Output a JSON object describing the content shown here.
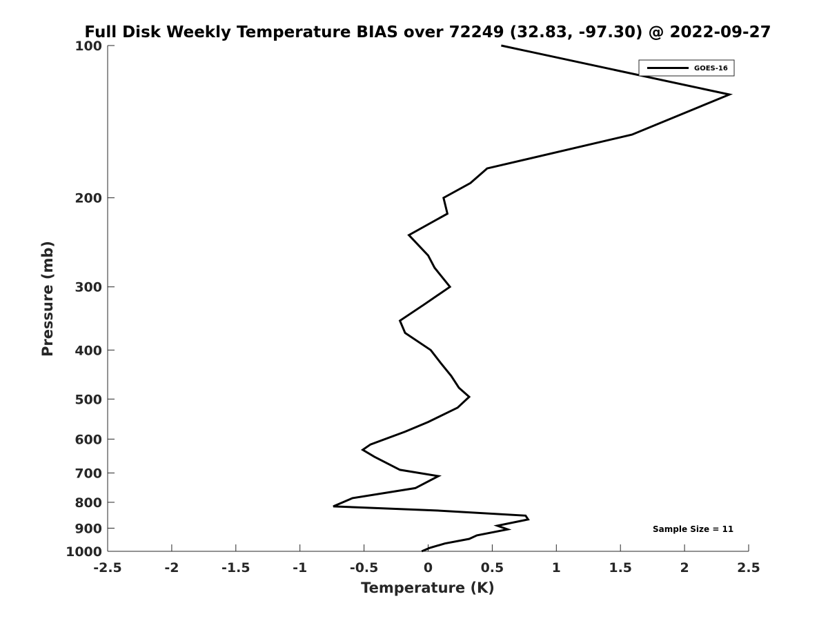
{
  "chart_data": {
    "type": "line",
    "title": "Full Disk Weekly Temperature BIAS over 72249 (32.83, -97.30) @ 2022-09-27",
    "xlabel": "Temperature (K)",
    "ylabel": "Pressure (mb)",
    "xlim": [
      -2.5,
      2.5
    ],
    "ylim": [
      100,
      1000
    ],
    "y_scale": "log",
    "y_reversed": true,
    "x_ticks": [
      -2.5,
      -2,
      -1.5,
      -1,
      -0.5,
      0,
      0.5,
      1,
      1.5,
      2,
      2.5
    ],
    "x_tick_labels": [
      "-2.5",
      "-2",
      "-1.5",
      "-1",
      "-0.5",
      "0",
      "0.5",
      "1",
      "1.5",
      "2",
      "2.5"
    ],
    "y_ticks": [
      100,
      200,
      300,
      400,
      500,
      600,
      700,
      800,
      900,
      1000
    ],
    "y_tick_labels": [
      "100",
      "200",
      "300",
      "400",
      "500",
      "600",
      "700",
      "800",
      "900",
      "1000"
    ],
    "grid": false,
    "legend_position": "top-right",
    "annotation": "Sample Size = 11",
    "series": [
      {
        "name": "GOES-16",
        "color": "#000000",
        "points": [
          {
            "x": 0.57,
            "y": 100
          },
          {
            "x": 2.35,
            "y": 125
          },
          {
            "x": 1.59,
            "y": 150
          },
          {
            "x": 0.46,
            "y": 175
          },
          {
            "x": 0.33,
            "y": 187
          },
          {
            "x": 0.12,
            "y": 200
          },
          {
            "x": 0.15,
            "y": 215
          },
          {
            "x": -0.15,
            "y": 237
          },
          {
            "x": 0.0,
            "y": 260
          },
          {
            "x": 0.05,
            "y": 275
          },
          {
            "x": 0.17,
            "y": 300
          },
          {
            "x": -0.03,
            "y": 325
          },
          {
            "x": -0.22,
            "y": 350
          },
          {
            "x": -0.18,
            "y": 370
          },
          {
            "x": 0.02,
            "y": 400
          },
          {
            "x": 0.1,
            "y": 425
          },
          {
            "x": 0.18,
            "y": 450
          },
          {
            "x": 0.24,
            "y": 475
          },
          {
            "x": 0.32,
            "y": 495
          },
          {
            "x": 0.23,
            "y": 520
          },
          {
            "x": 0.0,
            "y": 555
          },
          {
            "x": -0.18,
            "y": 580
          },
          {
            "x": -0.45,
            "y": 615
          },
          {
            "x": -0.51,
            "y": 630
          },
          {
            "x": -0.42,
            "y": 650
          },
          {
            "x": -0.22,
            "y": 690
          },
          {
            "x": 0.08,
            "y": 710
          },
          {
            "x": -0.1,
            "y": 750
          },
          {
            "x": -0.59,
            "y": 785
          },
          {
            "x": -0.74,
            "y": 815
          },
          {
            "x": 0.05,
            "y": 830
          },
          {
            "x": 0.76,
            "y": 850
          },
          {
            "x": 0.78,
            "y": 865
          },
          {
            "x": 0.54,
            "y": 890
          },
          {
            "x": 0.62,
            "y": 905
          },
          {
            "x": 0.38,
            "y": 930
          },
          {
            "x": 0.32,
            "y": 945
          },
          {
            "x": 0.13,
            "y": 965
          },
          {
            "x": 0.01,
            "y": 985
          },
          {
            "x": -0.05,
            "y": 1000
          }
        ]
      }
    ]
  }
}
